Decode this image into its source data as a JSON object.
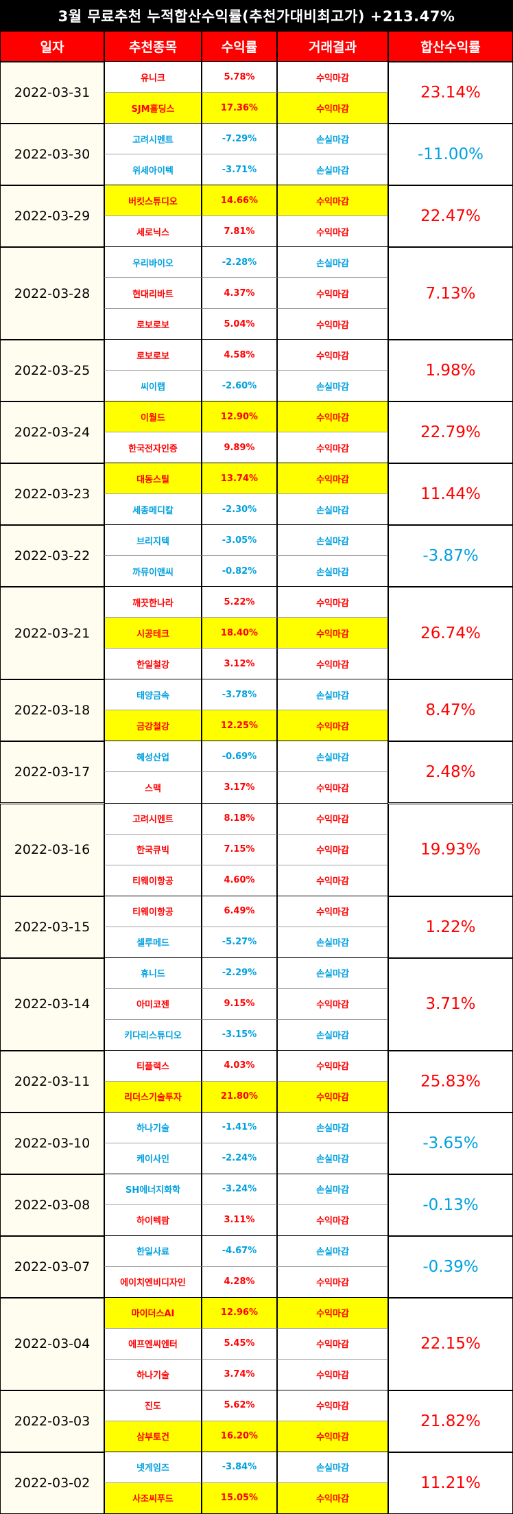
{
  "title": "3월 무료추천 누적합산수익률(추천가대비최고가) +213.47%",
  "headers": [
    "일자",
    "추천종목",
    "수익률",
    "거래결과",
    "합산수익률"
  ],
  "colors": {
    "header_bg": "#ff0000",
    "title_bg": "#000000",
    "profit": "#ff0000",
    "loss": "#00a0e0",
    "highlight": "#ffff00",
    "date_bg": "#fffdf0"
  },
  "days": [
    {
      "date": "2022-03-31",
      "total": "23.14%",
      "stocks": [
        {
          "name": "유니크",
          "rate": "5.78%",
          "result": "수익마감",
          "hl": false
        },
        {
          "name": "SJM홀딩스",
          "rate": "17.36%",
          "result": "수익마감",
          "hl": true
        }
      ]
    },
    {
      "date": "2022-03-30",
      "total": "-11.00%",
      "stocks": [
        {
          "name": "고려시멘트",
          "rate": "-7.29%",
          "result": "손실마감",
          "hl": false
        },
        {
          "name": "위세아이텍",
          "rate": "-3.71%",
          "result": "손실마감",
          "hl": false
        }
      ]
    },
    {
      "date": "2022-03-29",
      "total": "22.47%",
      "stocks": [
        {
          "name": "버킷스튜디오",
          "rate": "14.66%",
          "result": "수익마감",
          "hl": true
        },
        {
          "name": "세로닉스",
          "rate": "7.81%",
          "result": "수익마감",
          "hl": false
        }
      ]
    },
    {
      "date": "2022-03-28",
      "total": "7.13%",
      "stocks": [
        {
          "name": "우리바이오",
          "rate": "-2.28%",
          "result": "손실마감",
          "hl": false
        },
        {
          "name": "현대리바트",
          "rate": "4.37%",
          "result": "수익마감",
          "hl": false
        },
        {
          "name": "로보로보",
          "rate": "5.04%",
          "result": "수익마감",
          "hl": false
        }
      ]
    },
    {
      "date": "2022-03-25",
      "total": "1.98%",
      "stocks": [
        {
          "name": "로보로보",
          "rate": "4.58%",
          "result": "수익마감",
          "hl": false
        },
        {
          "name": "씨이랩",
          "rate": "-2.60%",
          "result": "손실마감",
          "hl": false
        }
      ]
    },
    {
      "date": "2022-03-24",
      "total": "22.79%",
      "stocks": [
        {
          "name": "이월드",
          "rate": "12.90%",
          "result": "수익마감",
          "hl": true
        },
        {
          "name": "한국전자인증",
          "rate": "9.89%",
          "result": "수익마감",
          "hl": false
        }
      ]
    },
    {
      "date": "2022-03-23",
      "total": "11.44%",
      "stocks": [
        {
          "name": "대동스틸",
          "rate": "13.74%",
          "result": "수익마감",
          "hl": true
        },
        {
          "name": "세종메디칼",
          "rate": "-2.30%",
          "result": "손실마감",
          "hl": false
        }
      ]
    },
    {
      "date": "2022-03-22",
      "total": "-3.87%",
      "stocks": [
        {
          "name": "브리지텍",
          "rate": "-3.05%",
          "result": "손실마감",
          "hl": false
        },
        {
          "name": "까뮤이앤씨",
          "rate": "-0.82%",
          "result": "손실마감",
          "hl": false
        }
      ]
    },
    {
      "date": "2022-03-21",
      "total": "26.74%",
      "stocks": [
        {
          "name": "깨끗한나라",
          "rate": "5.22%",
          "result": "수익마감",
          "hl": false
        },
        {
          "name": "시공테크",
          "rate": "18.40%",
          "result": "수익마감",
          "hl": true
        },
        {
          "name": "한일철강",
          "rate": "3.12%",
          "result": "수익마감",
          "hl": false
        }
      ]
    },
    {
      "date": "2022-03-18",
      "total": "8.47%",
      "stocks": [
        {
          "name": "태양금속",
          "rate": "-3.78%",
          "result": "손실마감",
          "hl": false
        },
        {
          "name": "금강철강",
          "rate": "12.25%",
          "result": "수익마감",
          "hl": true
        }
      ]
    },
    {
      "date": "2022-03-17",
      "total": "2.48%",
      "stocks": [
        {
          "name": "혜성산업",
          "rate": "-0.69%",
          "result": "손실마감",
          "hl": false
        },
        {
          "name": "스맥",
          "rate": "3.17%",
          "result": "수익마감",
          "hl": false
        }
      ]
    },
    {
      "date": "2022-03-16",
      "total": "19.93%",
      "stocks": [
        {
          "name": "고려시멘트",
          "rate": "8.18%",
          "result": "수익마감",
          "hl": false
        },
        {
          "name": "한국큐빅",
          "rate": "7.15%",
          "result": "수익마감",
          "hl": false
        },
        {
          "name": "티웨이항공",
          "rate": "4.60%",
          "result": "수익마감",
          "hl": false
        }
      ]
    },
    {
      "date": "2022-03-15",
      "total": "1.22%",
      "stocks": [
        {
          "name": "티웨이항공",
          "rate": "6.49%",
          "result": "수익마감",
          "hl": false
        },
        {
          "name": "셀루메드",
          "rate": "-5.27%",
          "result": "손실마감",
          "hl": false
        }
      ]
    },
    {
      "date": "2022-03-14",
      "total": "3.71%",
      "stocks": [
        {
          "name": "휴니드",
          "rate": "-2.29%",
          "result": "손실마감",
          "hl": false
        },
        {
          "name": "아미코젠",
          "rate": "9.15%",
          "result": "수익마감",
          "hl": false
        },
        {
          "name": "키다리스튜디오",
          "rate": "-3.15%",
          "result": "손실마감",
          "hl": false
        }
      ]
    },
    {
      "date": "2022-03-11",
      "total": "25.83%",
      "stocks": [
        {
          "name": "티플랙스",
          "rate": "4.03%",
          "result": "수익마감",
          "hl": false
        },
        {
          "name": "리더스기술투자",
          "rate": "21.80%",
          "result": "수익마감",
          "hl": true
        }
      ]
    },
    {
      "date": "2022-03-10",
      "total": "-3.65%",
      "stocks": [
        {
          "name": "하나기술",
          "rate": "-1.41%",
          "result": "손실마감",
          "hl": false
        },
        {
          "name": "케이사인",
          "rate": "-2.24%",
          "result": "손실마감",
          "hl": false
        }
      ]
    },
    {
      "date": "2022-03-08",
      "total": "-0.13%",
      "stocks": [
        {
          "name": "SH에너지화학",
          "rate": "-3.24%",
          "result": "손실마감",
          "hl": false
        },
        {
          "name": "하이텍팜",
          "rate": "3.11%",
          "result": "수익마감",
          "hl": false
        }
      ]
    },
    {
      "date": "2022-03-07",
      "total": "-0.39%",
      "stocks": [
        {
          "name": "한일사료",
          "rate": "-4.67%",
          "result": "손실마감",
          "hl": false
        },
        {
          "name": "에이치엔비디자인",
          "rate": "4.28%",
          "result": "수익마감",
          "hl": false
        }
      ]
    },
    {
      "date": "2022-03-04",
      "total": "22.15%",
      "stocks": [
        {
          "name": "마이더스AI",
          "rate": "12.96%",
          "result": "수익마감",
          "hl": true
        },
        {
          "name": "에프엔씨엔터",
          "rate": "5.45%",
          "result": "수익마감",
          "hl": false
        },
        {
          "name": "하나기술",
          "rate": "3.74%",
          "result": "수익마감",
          "hl": false
        }
      ]
    },
    {
      "date": "2022-03-03",
      "total": "21.82%",
      "stocks": [
        {
          "name": "진도",
          "rate": "5.62%",
          "result": "수익마감",
          "hl": false
        },
        {
          "name": "삼부토건",
          "rate": "16.20%",
          "result": "수익마감",
          "hl": true
        }
      ]
    },
    {
      "date": "2022-03-02",
      "total": "11.21%",
      "stocks": [
        {
          "name": "넷게임즈",
          "rate": "-3.84%",
          "result": "손실마감",
          "hl": false
        },
        {
          "name": "사조씨푸드",
          "rate": "15.05%",
          "result": "수익마감",
          "hl": true
        }
      ]
    }
  ]
}
